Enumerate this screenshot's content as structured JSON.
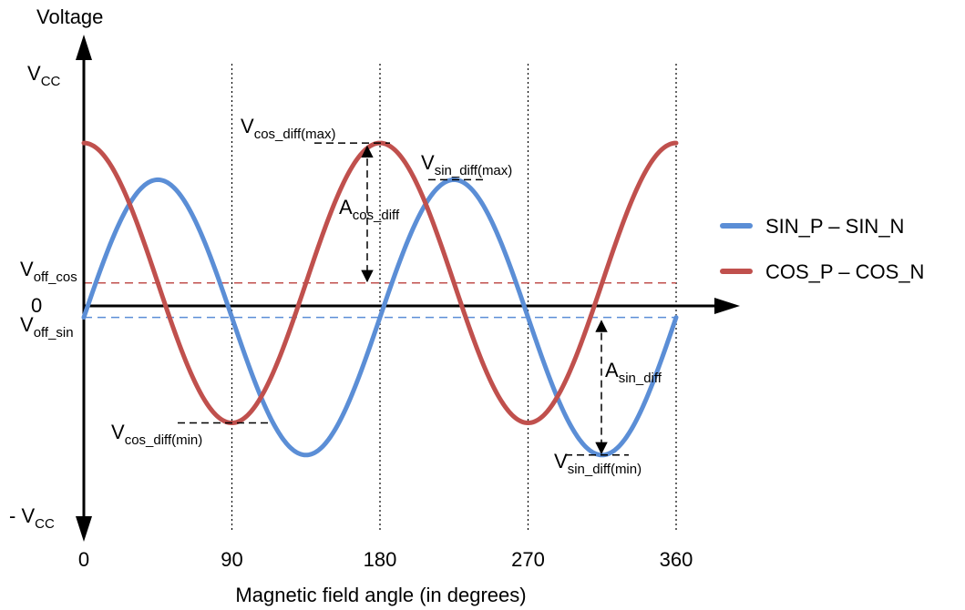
{
  "chart_data": {
    "type": "line",
    "title": "",
    "ylabel": "Voltage",
    "xlabel": "Magnetic field angle (in degrees)",
    "x_ticks": [
      0,
      90,
      180,
      270,
      360
    ],
    "xlim": [
      0,
      360
    ],
    "ylim": [
      -1,
      1
    ],
    "y_ticks": [
      "V_CC",
      "0",
      "- V_CC"
    ],
    "series": [
      {
        "name": "SIN_P – SIN_N",
        "color": "#5b8ed6",
        "offset": -0.05,
        "amplitude": 0.6,
        "x": [
          0,
          22.5,
          45,
          67.5,
          90,
          112.5,
          135,
          157.5,
          180,
          202.5,
          225,
          247.5,
          270,
          292.5,
          315,
          337.5,
          360
        ],
        "y": [
          -0.05,
          0.37,
          0.55,
          0.37,
          -0.05,
          -0.47,
          -0.65,
          -0.47,
          -0.05,
          0.37,
          0.55,
          0.37,
          -0.05,
          -0.47,
          -0.65,
          -0.47,
          -0.05
        ]
      },
      {
        "name": "COS_P – COS_N",
        "color": "#c0504d",
        "offset": 0.1,
        "amplitude": 0.61,
        "x": [
          0,
          22.5,
          45,
          67.5,
          90,
          112.5,
          135,
          157.5,
          180,
          202.5,
          225,
          247.5,
          270,
          292.5,
          315,
          337.5,
          360
        ],
        "y": [
          0.71,
          0.53,
          0.1,
          -0.33,
          -0.51,
          -0.33,
          0.1,
          0.53,
          0.71,
          0.53,
          0.1,
          -0.33,
          -0.51,
          -0.33,
          0.1,
          0.53,
          0.71
        ]
      }
    ],
    "vertical_gridlines": [
      90,
      180,
      270,
      360
    ],
    "offset_lines": [
      {
        "series": "COS_P – COS_N",
        "label": "V",
        "sub": "off_cos",
        "value": 0.1
      },
      {
        "series": "SIN_P – SIN_N",
        "label": "V",
        "sub": "off_sin",
        "value": -0.05
      }
    ],
    "annotations": [
      {
        "id": "cos-max",
        "label": "V",
        "sub": "cos_diff(max)"
      },
      {
        "id": "sin-max",
        "label": "V",
        "sub": "sin_diff(max)"
      },
      {
        "id": "cos-min",
        "label": "V",
        "sub": "cos_diff(min)"
      },
      {
        "id": "sin-min",
        "label": "V",
        "sub": "sin_diff(min)"
      },
      {
        "id": "a-cos",
        "label": "A",
        "sub": "cos_diff"
      },
      {
        "id": "a-sin",
        "label": "A",
        "sub": "sin_diff"
      }
    ],
    "legend": {
      "placement": "right",
      "entries": [
        "SIN_P – SIN_N",
        "COS_P – COS_N"
      ]
    }
  }
}
